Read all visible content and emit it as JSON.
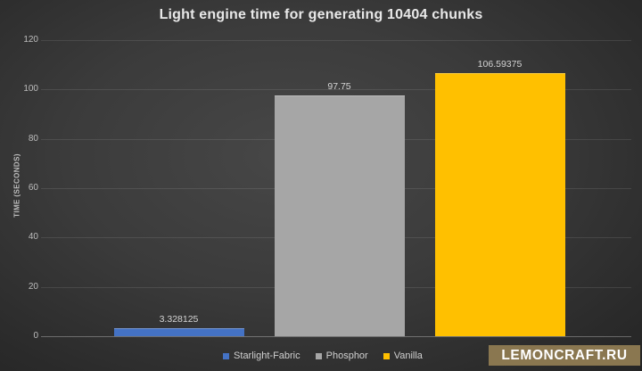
{
  "chart_data": {
    "type": "bar",
    "title": "Light engine time for generating 10404 chunks",
    "ylabel": "TIME (SECONDS)",
    "xlabel": "",
    "categories": [
      "Starlight-Fabric",
      "Phosphor",
      "Vanilla"
    ],
    "values": [
      3.328125,
      97.75,
      106.59375
    ],
    "value_labels": [
      "3.328125",
      "97.75",
      "106.59375"
    ],
    "series_colors": [
      "#4472c4",
      "#a6a6a6",
      "#ffc000"
    ],
    "ylim": [
      0,
      120
    ],
    "yticks": [
      0,
      20,
      40,
      60,
      80,
      100,
      120
    ],
    "grid": true,
    "legend_position": "bottom"
  },
  "watermark": {
    "text": "LEMONCRAFT.RU",
    "bg_color": "#8a7750",
    "text_color": "#ffffff"
  },
  "colors": {
    "background_center": "#474747",
    "background_edge": "#252525",
    "title_text": "#e8e8e8",
    "axis_text": "#bdbdbd",
    "value_label_text": "#d4d4d4"
  }
}
